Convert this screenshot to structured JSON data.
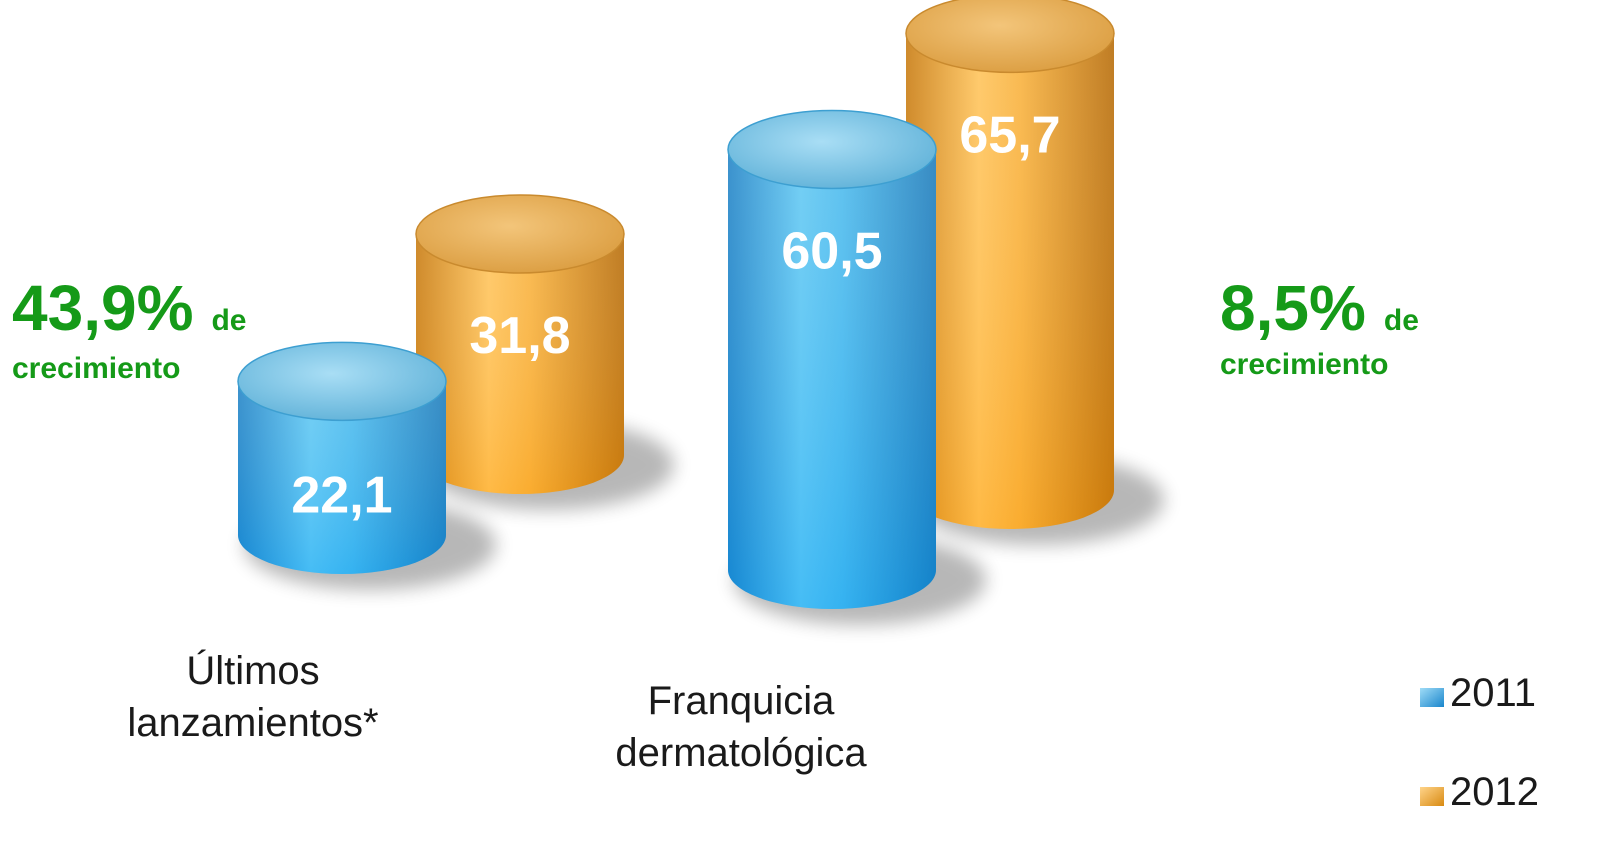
{
  "chart_data": {
    "type": "bar",
    "style": "3d-cylinder",
    "categories": [
      "Últimos lanzamientos*",
      "Franquicia dermatológica"
    ],
    "series": [
      {
        "name": "2011",
        "color": "#2fa9e6",
        "values": [
          22.1,
          60.5
        ],
        "labels": [
          "22,1",
          "60,5"
        ]
      },
      {
        "name": "2012",
        "color": "#f2a22a",
        "values": [
          31.8,
          65.7
        ],
        "labels": [
          "31,8",
          "65,7"
        ]
      }
    ],
    "category_lines": [
      [
        "Últimos",
        "lanzamientos*"
      ],
      [
        "Franquicia",
        "dermatológica"
      ]
    ],
    "annotations": [
      {
        "big": "43,9%",
        "small": "de",
        "line2": "crecimiento"
      },
      {
        "big": "8,5%",
        "small": "de",
        "line2": "crecimiento"
      }
    ],
    "legend_position": "bottom-right",
    "grid": false
  }
}
